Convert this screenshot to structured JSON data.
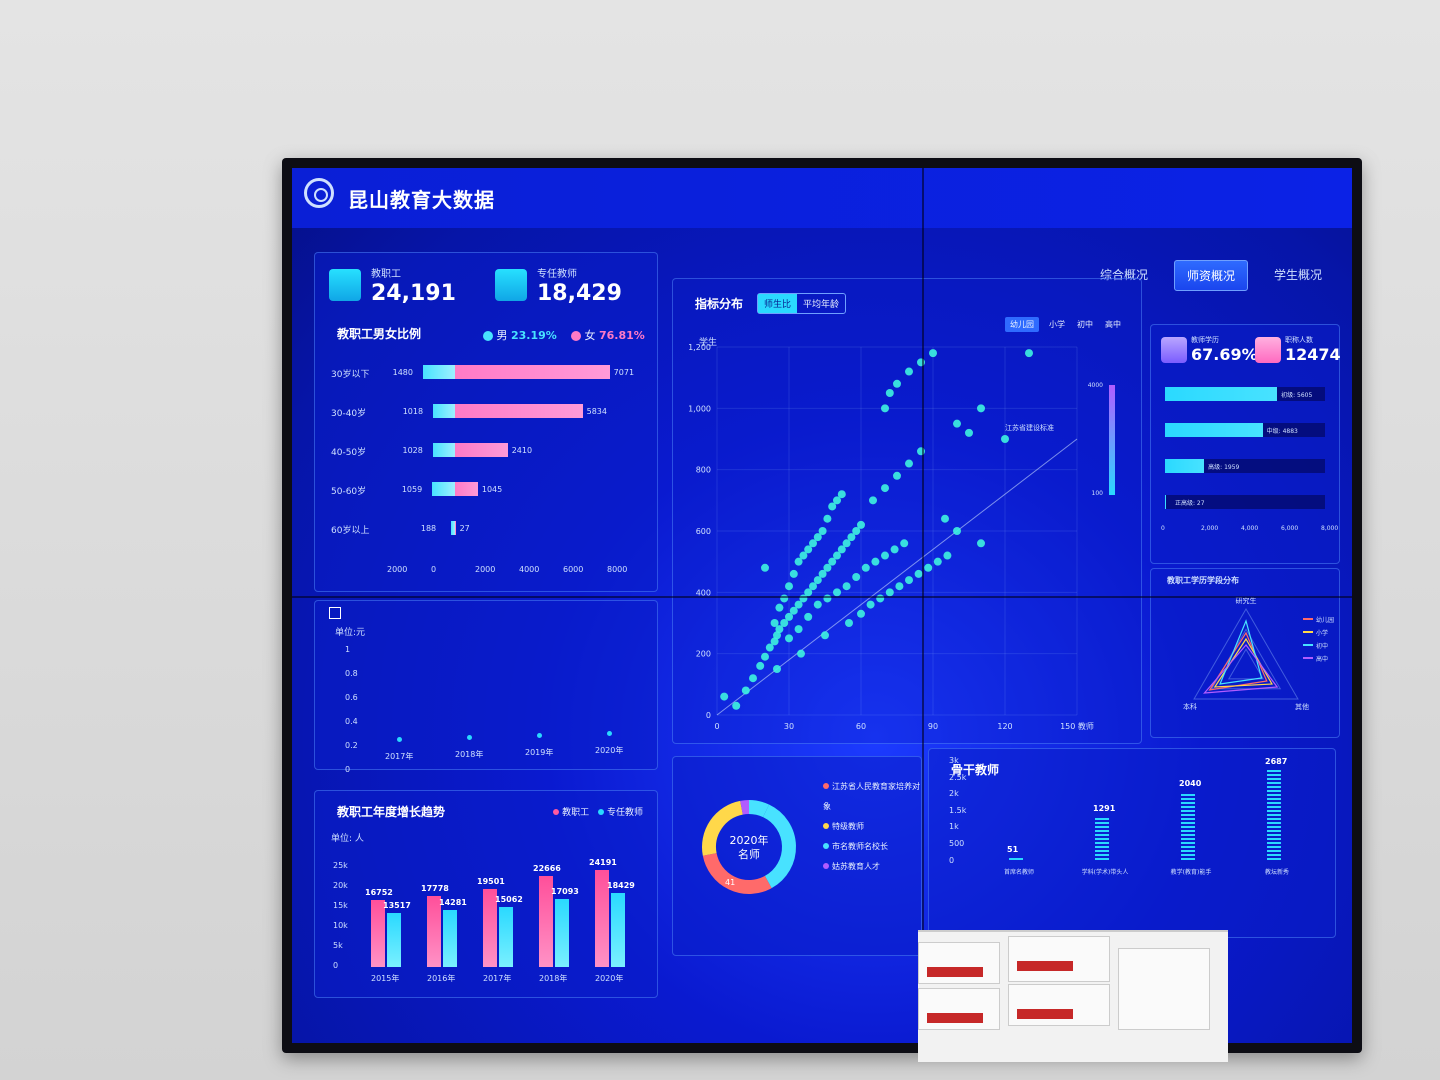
{
  "header": {
    "title": "昆山教育大数据"
  },
  "nav": {
    "tabs": [
      {
        "label": "综合概况"
      },
      {
        "label": "师资概况"
      },
      {
        "label": "学生概况"
      }
    ],
    "active": 1
  },
  "stats_left": [
    {
      "label": "教职工",
      "value": "24,191"
    },
    {
      "label": "专任教师",
      "value": "18,429"
    }
  ],
  "gender_panel": {
    "title": "教职工男女比例",
    "male_label": "男",
    "male_pct": "23.19%",
    "female_label": "女",
    "female_pct": "76.81%",
    "rows": [
      {
        "label": "30岁以下",
        "male": 1480,
        "female": 7071
      },
      {
        "label": "30-40岁",
        "male": 1018,
        "female": 5834
      },
      {
        "label": "40-50岁",
        "male": 1028,
        "female": 2410
      },
      {
        "label": "50-60岁",
        "male": 1059,
        "female": 1045
      },
      {
        "label": "60岁以上",
        "male": 188,
        "female": 27
      }
    ],
    "axis_ticks": [
      "2000",
      "0",
      "2000",
      "4000",
      "6000",
      "8000"
    ]
  },
  "line_panel": {
    "unit": "单位:元",
    "y_ticks": [
      "1",
      "0.8",
      "0.6",
      "0.4",
      "0.2",
      "0"
    ],
    "x_ticks": [
      "2017年",
      "2018年",
      "2019年",
      "2020年"
    ]
  },
  "trend_panel": {
    "title": "教职工年度增长趋势",
    "unit": "单位: 人",
    "legend": [
      "教职工",
      "专任教师"
    ],
    "y_ticks": [
      "25k",
      "20k",
      "15k",
      "10k",
      "5k",
      "0"
    ]
  },
  "scatter_panel": {
    "title": "指标分布",
    "toggles": [
      "师生比",
      "平均年龄"
    ],
    "filters": [
      "幼儿园",
      "小学",
      "初中",
      "高中"
    ],
    "y_label": "学生",
    "y_ticks": [
      "1,200",
      "1,000",
      "800",
      "600",
      "400",
      "200",
      "0"
    ],
    "x_ticks": [
      "0",
      "30",
      "60",
      "90",
      "120",
      "150 教师"
    ],
    "annotation": "江苏省建设标准",
    "legend_range": [
      "4000",
      "100"
    ]
  },
  "donut_panel": {
    "center_line1": "2020年",
    "center_line2": "名师",
    "value_label": "41",
    "legend": [
      "江苏省人民教育家培养对象",
      "特级教师",
      "市名教师名校长",
      "姑苏教育人才"
    ],
    "colors": [
      "#ff6a6a",
      "#ffd84a",
      "#48e2ff",
      "#b15cff"
    ]
  },
  "backbone_panel": {
    "title": "骨干教师",
    "y_ticks": [
      "3k",
      "2.5k",
      "2k",
      "1.5k",
      "1k",
      "500",
      "0"
    ],
    "values": [
      {
        "label": "首席名教师",
        "value": "51"
      },
      {
        "label": "学科(学术)带头人",
        "value": "1291"
      },
      {
        "label": "教学(教育)能手",
        "value": "2040"
      },
      {
        "label": "教坛新秀",
        "value": "2687"
      }
    ]
  },
  "stats_right": [
    {
      "label": "教师学历",
      "value": "67.69%"
    },
    {
      "label": "职称人数",
      "value": "12474"
    }
  ],
  "title_bars": {
    "rows": [
      {
        "label": "初级",
        "value": 5605
      },
      {
        "label": "中级",
        "value": 4883
      },
      {
        "label": "高级",
        "value": 1959
      },
      {
        "label": "正高级",
        "value": 27
      }
    ],
    "x_ticks": [
      "0",
      "2,000",
      "4,000",
      "6,000",
      "8,000"
    ]
  },
  "radar_panel": {
    "title": "教职工学历学段分布",
    "axes": [
      "研究生",
      "本科",
      "其他"
    ],
    "legend": [
      "幼儿园",
      "小学",
      "初中",
      "高中"
    ]
  },
  "chart_data": [
    {
      "type": "bar",
      "title": "教职工男女比例",
      "categories": [
        "30岁以下",
        "30-40岁",
        "40-50岁",
        "50-60岁",
        "60岁以上"
      ],
      "series": [
        {
          "name": "男",
          "values": [
            1480,
            1018,
            1028,
            1059,
            188
          ]
        },
        {
          "name": "女",
          "values": [
            7071,
            5834,
            2410,
            1045,
            27
          ]
        }
      ]
    },
    {
      "type": "bar",
      "title": "教职工年度增长趋势",
      "categories": [
        "2015年",
        "2016年",
        "2017年",
        "2018年",
        "2020年"
      ],
      "series": [
        {
          "name": "教职工",
          "values": [
            16752,
            17778,
            19501,
            22666,
            24191
          ]
        },
        {
          "name": "专任教师",
          "values": [
            13517,
            14281,
            15062,
            17093,
            18429
          ]
        }
      ],
      "ylim": [
        0,
        25000
      ]
    },
    {
      "type": "bar",
      "title": "骨干教师",
      "categories": [
        "首席名教师",
        "学科(学术)带头人",
        "教学(教育)能手",
        "教坛新秀"
      ],
      "values": [
        51,
        1291,
        2040,
        2687
      ],
      "ylim": [
        0,
        3000
      ]
    },
    {
      "type": "bar",
      "categories": [
        "初级",
        "中级",
        "高级",
        "正高级"
      ],
      "values": [
        5605,
        4883,
        1959,
        27
      ],
      "xlim": [
        0,
        8000
      ]
    },
    {
      "type": "scatter",
      "title": "指标分布",
      "ylabel": "学生",
      "xlim": [
        0,
        150
      ],
      "ylim": [
        0,
        1200
      ],
      "points": [
        [
          3,
          60
        ],
        [
          8,
          30
        ],
        [
          12,
          80
        ],
        [
          15,
          120
        ],
        [
          18,
          160
        ],
        [
          20,
          190
        ],
        [
          22,
          220
        ],
        [
          24,
          240
        ],
        [
          25,
          260
        ],
        [
          26,
          280
        ],
        [
          28,
          300
        ],
        [
          30,
          320
        ],
        [
          32,
          340
        ],
        [
          34,
          360
        ],
        [
          36,
          380
        ],
        [
          38,
          400
        ],
        [
          40,
          420
        ],
        [
          42,
          440
        ],
        [
          44,
          460
        ],
        [
          46,
          480
        ],
        [
          48,
          500
        ],
        [
          50,
          520
        ],
        [
          52,
          540
        ],
        [
          54,
          560
        ],
        [
          56,
          580
        ],
        [
          58,
          600
        ],
        [
          60,
          620
        ],
        [
          24,
          300
        ],
        [
          26,
          350
        ],
        [
          28,
          380
        ],
        [
          30,
          420
        ],
        [
          32,
          460
        ],
        [
          34,
          500
        ],
        [
          36,
          520
        ],
        [
          38,
          540
        ],
        [
          40,
          560
        ],
        [
          42,
          580
        ],
        [
          44,
          600
        ],
        [
          46,
          640
        ],
        [
          48,
          680
        ],
        [
          50,
          700
        ],
        [
          52,
          720
        ],
        [
          30,
          250
        ],
        [
          34,
          280
        ],
        [
          38,
          320
        ],
        [
          42,
          360
        ],
        [
          46,
          380
        ],
        [
          50,
          400
        ],
        [
          54,
          420
        ],
        [
          58,
          450
        ],
        [
          62,
          480
        ],
        [
          66,
          500
        ],
        [
          70,
          520
        ],
        [
          74,
          540
        ],
        [
          78,
          560
        ],
        [
          65,
          700
        ],
        [
          70,
          740
        ],
        [
          75,
          780
        ],
        [
          80,
          820
        ],
        [
          85,
          860
        ],
        [
          70,
          1000
        ],
        [
          72,
          1050
        ],
        [
          75,
          1080
        ],
        [
          80,
          1120
        ],
        [
          85,
          1150
        ],
        [
          90,
          1180
        ],
        [
          100,
          950
        ],
        [
          105,
          920
        ],
        [
          110,
          1000
        ],
        [
          130,
          1180
        ],
        [
          120,
          900
        ],
        [
          95,
          640
        ],
        [
          100,
          600
        ],
        [
          110,
          560
        ],
        [
          20,
          480
        ],
        [
          25,
          150
        ],
        [
          35,
          200
        ],
        [
          45,
          260
        ],
        [
          55,
          300
        ],
        [
          60,
          330
        ],
        [
          64,
          360
        ],
        [
          68,
          380
        ],
        [
          72,
          400
        ],
        [
          76,
          420
        ],
        [
          80,
          440
        ],
        [
          84,
          460
        ],
        [
          88,
          480
        ],
        [
          92,
          500
        ],
        [
          96,
          520
        ]
      ]
    }
  ]
}
